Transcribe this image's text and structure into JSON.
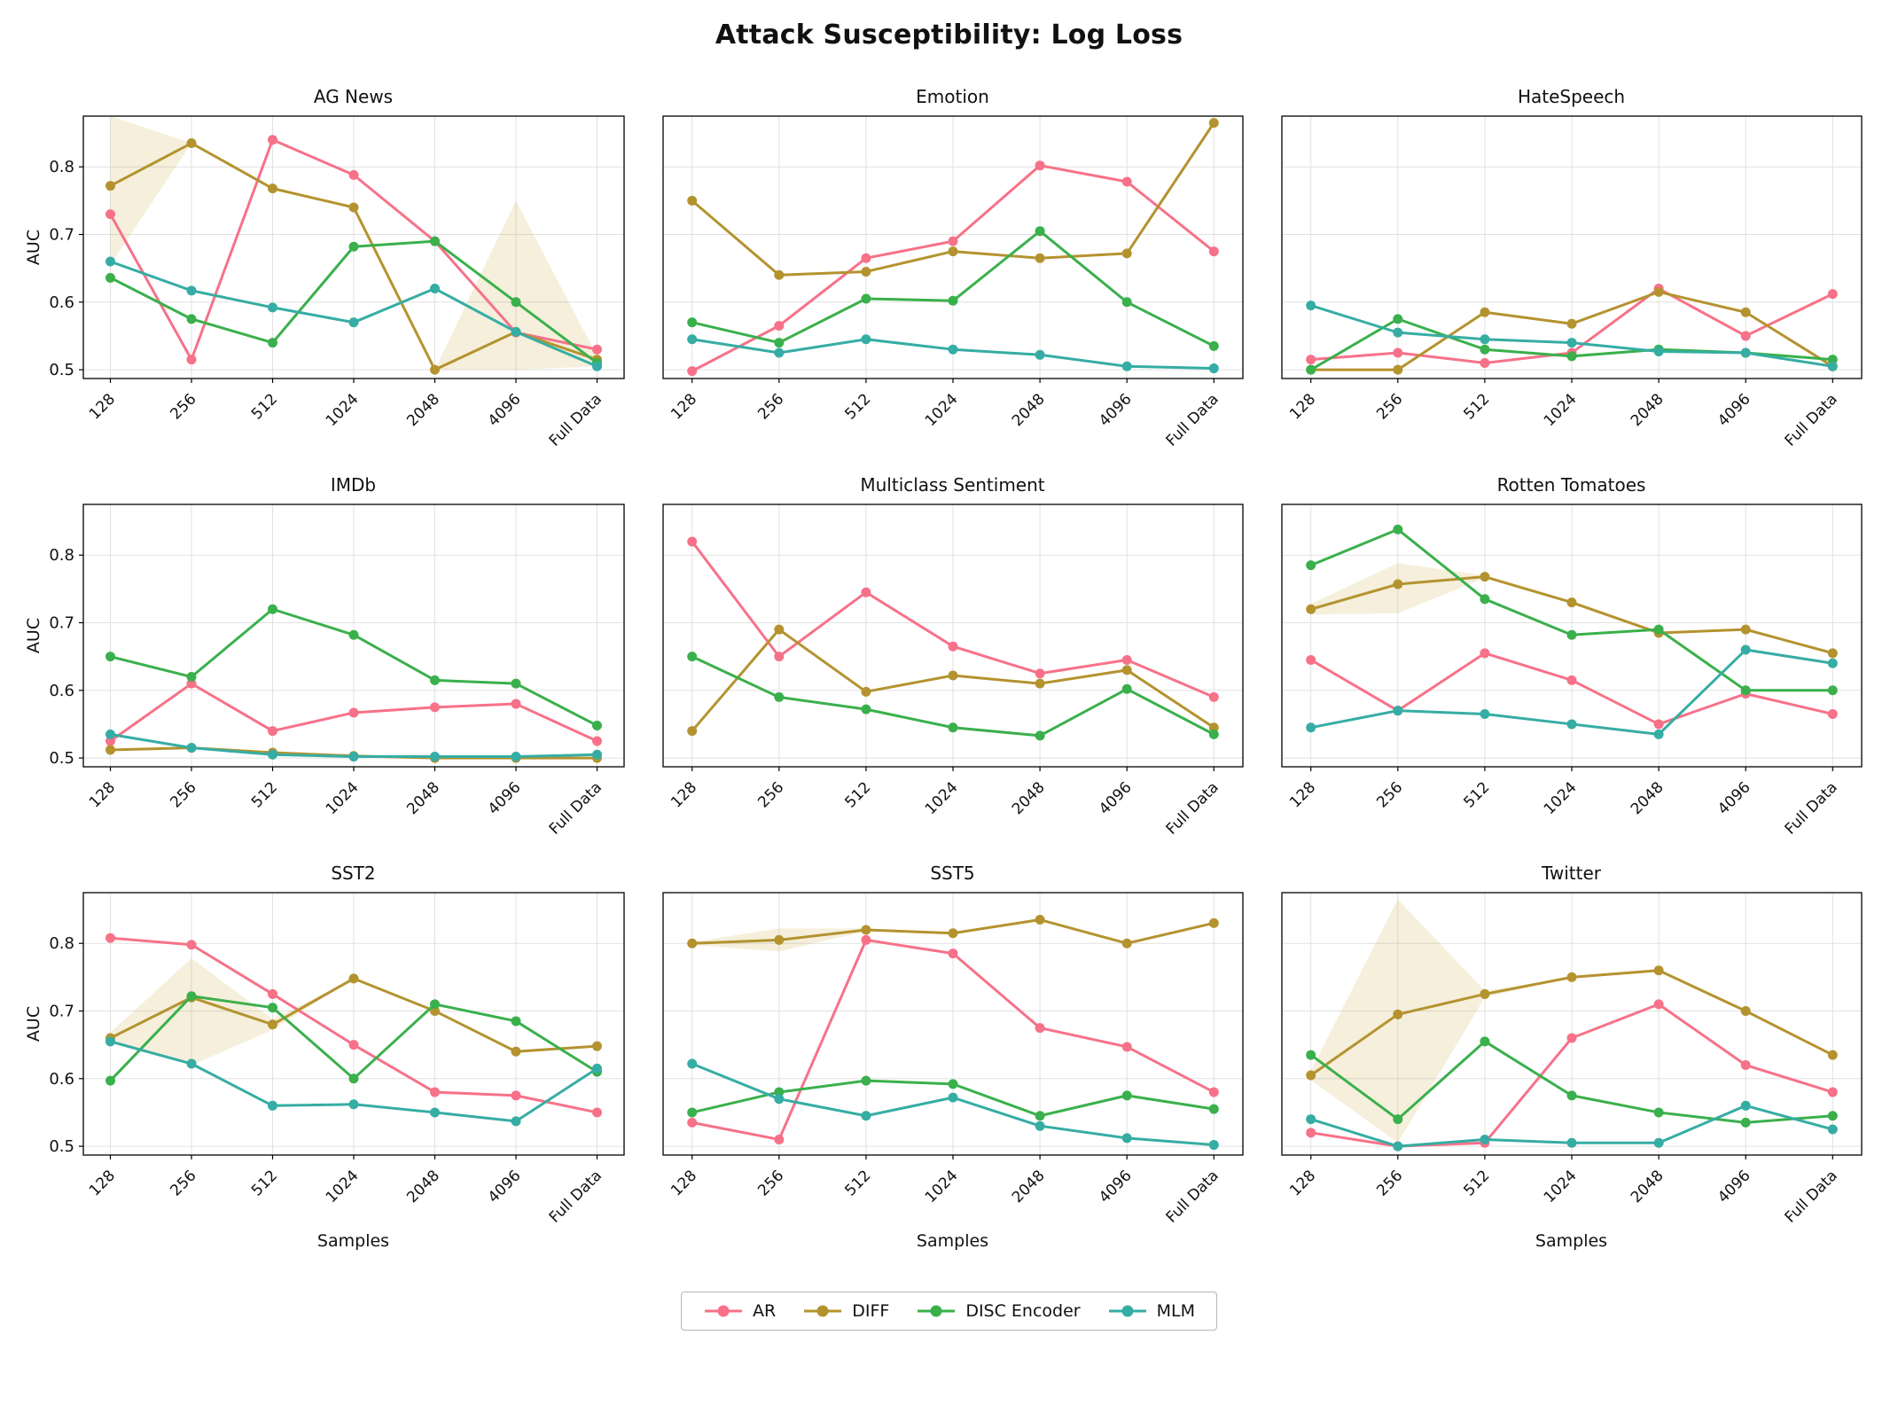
{
  "chart_data": {
    "type": "line",
    "title": "Attack Susceptibility: Log Loss",
    "xlabel": "Samples",
    "ylabel": "AUC",
    "x_categories": [
      "128",
      "256",
      "512",
      "1024",
      "2048",
      "4096",
      "Full Data"
    ],
    "ylim": [
      0.487,
      0.875
    ],
    "yticks": [
      0.5,
      0.6,
      0.7,
      0.8
    ],
    "grid": true,
    "legend_position": "bottom-center",
    "series_names": [
      "AR",
      "DIFF",
      "DISC Encoder",
      "MLM"
    ],
    "colors": {
      "AR": "#f77189",
      "DIFF": "#b4932f",
      "DISC Encoder": "#3ab04c",
      "MLM": "#36ada4"
    },
    "band_fill": "#c8a63c",
    "band_opacity": 0.18,
    "subplots": [
      {
        "title": "AG News",
        "series": [
          {
            "name": "AR",
            "values": [
              0.73,
              0.515,
              0.84,
              0.788,
              0.69,
              0.555,
              0.53
            ]
          },
          {
            "name": "DIFF",
            "values": [
              0.772,
              0.835,
              0.768,
              0.74,
              0.5,
              0.556,
              0.515
            ],
            "band_upper": [
              0.875,
              0.835,
              0.768,
              0.74,
              0.5,
              0.75,
              0.52
            ],
            "band_lower": [
              0.655,
              0.835,
              0.768,
              0.74,
              0.5,
              0.5,
              0.505
            ]
          },
          {
            "name": "DISC Encoder",
            "values": [
              0.636,
              0.575,
              0.54,
              0.682,
              0.69,
              0.6,
              0.51
            ]
          },
          {
            "name": "MLM",
            "values": [
              0.66,
              0.617,
              0.592,
              0.57,
              0.62,
              0.556,
              0.505
            ]
          }
        ]
      },
      {
        "title": "Emotion",
        "series": [
          {
            "name": "AR",
            "values": [
              0.498,
              0.565,
              0.665,
              0.69,
              0.802,
              0.778,
              0.675
            ]
          },
          {
            "name": "DIFF",
            "values": [
              0.75,
              0.64,
              0.645,
              0.675,
              0.665,
              0.672,
              0.865
            ]
          },
          {
            "name": "DISC Encoder",
            "values": [
              0.57,
              0.54,
              0.605,
              0.602,
              0.705,
              0.6,
              0.535
            ]
          },
          {
            "name": "MLM",
            "values": [
              0.545,
              0.525,
              0.545,
              0.53,
              0.522,
              0.505,
              0.502
            ]
          }
        ]
      },
      {
        "title": "HateSpeech",
        "series": [
          {
            "name": "AR",
            "values": [
              0.515,
              0.525,
              0.51,
              0.525,
              0.62,
              0.55,
              0.612
            ]
          },
          {
            "name": "DIFF",
            "values": [
              0.5,
              0.5,
              0.585,
              0.568,
              0.615,
              0.585,
              0.505
            ]
          },
          {
            "name": "DISC Encoder",
            "values": [
              0.5,
              0.575,
              0.53,
              0.52,
              0.53,
              0.525,
              0.515
            ]
          },
          {
            "name": "MLM",
            "values": [
              0.595,
              0.555,
              0.545,
              0.54,
              0.527,
              0.525,
              0.505
            ]
          }
        ]
      },
      {
        "title": "IMDb",
        "series": [
          {
            "name": "AR",
            "values": [
              0.525,
              0.61,
              0.54,
              0.567,
              0.575,
              0.58,
              0.525
            ]
          },
          {
            "name": "DIFF",
            "values": [
              0.512,
              0.515,
              0.508,
              0.503,
              0.5,
              0.5,
              0.5
            ]
          },
          {
            "name": "DISC Encoder",
            "values": [
              0.65,
              0.62,
              0.72,
              0.682,
              0.615,
              0.61,
              0.548
            ]
          },
          {
            "name": "MLM",
            "values": [
              0.535,
              0.515,
              0.505,
              0.502,
              0.502,
              0.502,
              0.505
            ]
          }
        ]
      },
      {
        "title": "Multiclass Sentiment",
        "series": [
          {
            "name": "AR",
            "values": [
              0.82,
              0.65,
              0.745,
              0.665,
              0.625,
              0.645,
              0.59
            ]
          },
          {
            "name": "DIFF",
            "values": [
              0.54,
              0.69,
              0.598,
              0.622,
              0.61,
              0.63,
              0.545
            ]
          },
          {
            "name": "DISC Encoder",
            "values": [
              0.65,
              0.59,
              0.572,
              0.545,
              0.533,
              0.602,
              0.535
            ]
          }
        ]
      },
      {
        "title": "Rotten Tomatoes",
        "series": [
          {
            "name": "AR",
            "values": [
              0.645,
              0.57,
              0.655,
              0.615,
              0.55,
              0.595,
              0.565
            ]
          },
          {
            "name": "DIFF",
            "values": [
              0.72,
              0.757,
              0.768,
              0.73,
              0.685,
              0.69,
              0.655
            ],
            "band_upper": [
              0.728,
              0.788,
              0.77,
              0.73,
              0.685,
              0.69,
              0.655
            ],
            "band_lower": [
              0.712,
              0.714,
              0.766,
              0.73,
              0.685,
              0.69,
              0.655
            ]
          },
          {
            "name": "DISC Encoder",
            "values": [
              0.785,
              0.838,
              0.735,
              0.682,
              0.69,
              0.6,
              0.6
            ]
          },
          {
            "name": "MLM",
            "values": [
              0.545,
              0.57,
              0.565,
              0.55,
              0.535,
              0.66,
              0.64
            ]
          }
        ]
      },
      {
        "title": "SST2",
        "series": [
          {
            "name": "AR",
            "values": [
              0.808,
              0.798,
              0.725,
              0.65,
              0.58,
              0.575,
              0.55
            ]
          },
          {
            "name": "DIFF",
            "values": [
              0.66,
              0.72,
              0.68,
              0.748,
              0.7,
              0.64,
              0.648
            ],
            "band_upper": [
              0.668,
              0.778,
              0.688,
              0.748,
              0.7,
              0.64,
              0.648
            ],
            "band_lower": [
              0.652,
              0.62,
              0.672,
              0.748,
              0.7,
              0.64,
              0.648
            ]
          },
          {
            "name": "DISC Encoder",
            "values": [
              0.597,
              0.722,
              0.705,
              0.6,
              0.71,
              0.685,
              0.61
            ]
          },
          {
            "name": "MLM",
            "values": [
              0.655,
              0.622,
              0.56,
              0.562,
              0.55,
              0.537,
              0.615
            ]
          }
        ]
      },
      {
        "title": "SST5",
        "series": [
          {
            "name": "AR",
            "values": [
              0.535,
              0.51,
              0.805,
              0.785,
              0.675,
              0.647,
              0.58
            ]
          },
          {
            "name": "DIFF",
            "values": [
              0.8,
              0.805,
              0.82,
              0.815,
              0.835,
              0.8,
              0.83
            ],
            "band_upper": [
              0.802,
              0.822,
              0.822,
              0.815,
              0.835,
              0.8,
              0.83
            ],
            "band_lower": [
              0.798,
              0.788,
              0.818,
              0.815,
              0.835,
              0.8,
              0.83
            ]
          },
          {
            "name": "DISC Encoder",
            "values": [
              0.55,
              0.58,
              0.597,
              0.592,
              0.545,
              0.575,
              0.555
            ]
          },
          {
            "name": "MLM",
            "values": [
              0.622,
              0.57,
              0.545,
              0.572,
              0.53,
              0.512,
              0.502
            ]
          }
        ]
      },
      {
        "title": "Twitter",
        "series": [
          {
            "name": "AR",
            "values": [
              0.52,
              0.5,
              0.505,
              0.66,
              0.71,
              0.62,
              0.58
            ]
          },
          {
            "name": "DIFF",
            "values": [
              0.605,
              0.695,
              0.725,
              0.75,
              0.76,
              0.7,
              0.635
            ],
            "band_upper": [
              0.612,
              0.865,
              0.73,
              0.75,
              0.76,
              0.7,
              0.635
            ],
            "band_lower": [
              0.598,
              0.505,
              0.72,
              0.75,
              0.76,
              0.7,
              0.635
            ]
          },
          {
            "name": "DISC Encoder",
            "values": [
              0.635,
              0.54,
              0.655,
              0.575,
              0.55,
              0.535,
              0.545
            ]
          },
          {
            "name": "MLM",
            "values": [
              0.54,
              0.5,
              0.51,
              0.505,
              0.505,
              0.56,
              0.525
            ]
          }
        ]
      }
    ]
  }
}
